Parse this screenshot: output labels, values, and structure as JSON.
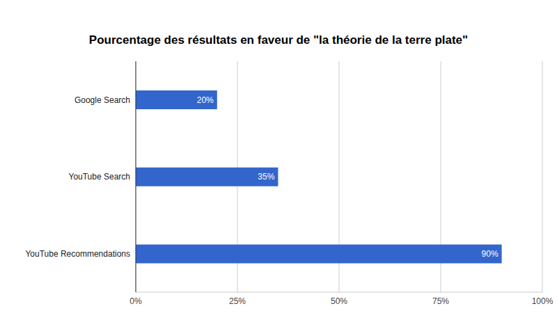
{
  "chart_data": {
    "type": "bar",
    "title": "Pourcentage des résultats en faveur de \"la théorie de la terre plate\"",
    "orientation": "horizontal",
    "categories": [
      "Google Search",
      "YouTube Search",
      "YouTube Recommendations"
    ],
    "values": [
      20,
      35,
      90
    ],
    "value_labels": [
      "20%",
      "35%",
      "90%"
    ],
    "data_labels": true,
    "color": "#3366cc",
    "xlim": [
      0,
      100
    ],
    "xticks": [
      {
        "value": 0,
        "label": "0%"
      },
      {
        "value": 25,
        "label": "25%"
      },
      {
        "value": 50,
        "label": "50%"
      },
      {
        "value": 75,
        "label": "75%"
      },
      {
        "value": 100,
        "label": "100%"
      }
    ],
    "grid": true
  }
}
